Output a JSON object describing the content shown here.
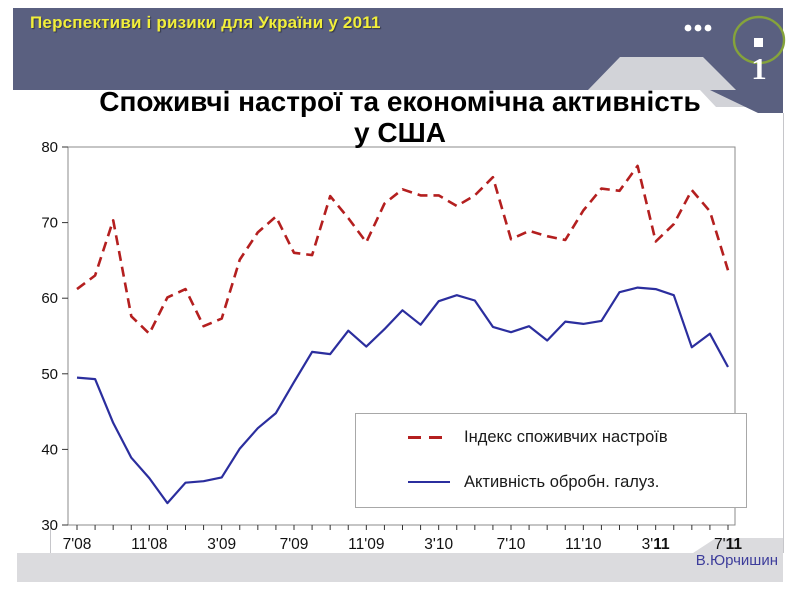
{
  "slide": {
    "header_title": "Перспективи і ризики для України у 2011",
    "slide_number": "1",
    "title_line1": "Споживчі настрої та економічна активність",
    "title_line2": "у США",
    "footer_author": "В.Юрчишин"
  },
  "colors": {
    "header_band": "#5a6080",
    "header_text": "#f1ee3a",
    "gray_shape": "#d2d3d8",
    "footer_band": "#dbdbde",
    "author_text": "#3d3d9b",
    "ring_green": "#85a33b",
    "sentiment_red": "#b41f1f",
    "manufacturing_blue": "#2b2e9e",
    "plot_border": "#8b8b8b"
  },
  "chart_data": {
    "type": "line",
    "title": "Споживчі настрої та економічна активність у США",
    "xlabel": "",
    "ylabel": "",
    "ylim": [
      30,
      80
    ],
    "y_ticks": [
      30,
      40,
      50,
      60,
      70,
      80
    ],
    "grid": false,
    "x_frequency": "monthly",
    "x_range": "7'08 – 7'11",
    "x_labels": [
      {
        "label": "7'08",
        "bold_year": false
      },
      {
        "label": "11'08",
        "bold_year": false
      },
      {
        "label": "3'09",
        "bold_year": false
      },
      {
        "label": "7'09",
        "bold_year": false
      },
      {
        "label": "11'09",
        "bold_year": false
      },
      {
        "label": "3'10",
        "bold_year": false
      },
      {
        "label": "7'10",
        "bold_year": false
      },
      {
        "label": "11'10",
        "bold_year": false
      },
      {
        "label": "3'11",
        "bold_year": true
      },
      {
        "label": "7'11",
        "bold_year": true
      }
    ],
    "legend_position": "inside-lower-right-box",
    "series": [
      {
        "name": "Індекс споживчих настроїв",
        "color": "#b41f1f",
        "style": "dashed",
        "values": [
          61.2,
          63.0,
          70.3,
          57.6,
          55.3,
          60.1,
          61.2,
          56.3,
          57.3,
          65.1,
          68.7,
          70.8,
          66.0,
          65.7,
          73.5,
          70.6,
          67.4,
          72.5,
          74.4,
          73.6,
          73.6,
          72.2,
          73.6,
          76.0,
          67.8,
          68.9,
          68.2,
          67.7,
          71.6,
          74.5,
          74.2,
          77.5,
          67.5,
          69.8,
          74.3,
          71.5,
          63.7
        ]
      },
      {
        "name": "Активність обробн. галуз.",
        "color": "#2b2e9e",
        "style": "solid",
        "values": [
          49.5,
          49.3,
          43.5,
          38.9,
          36.2,
          32.9,
          35.6,
          35.8,
          36.3,
          40.1,
          42.8,
          44.8,
          48.9,
          52.9,
          52.6,
          55.7,
          53.6,
          55.9,
          58.4,
          56.5,
          59.6,
          60.4,
          59.7,
          56.2,
          55.5,
          56.3,
          54.4,
          56.9,
          56.6,
          57.0,
          60.8,
          61.4,
          61.2,
          60.4,
          53.5,
          55.3,
          50.9
        ]
      }
    ]
  }
}
